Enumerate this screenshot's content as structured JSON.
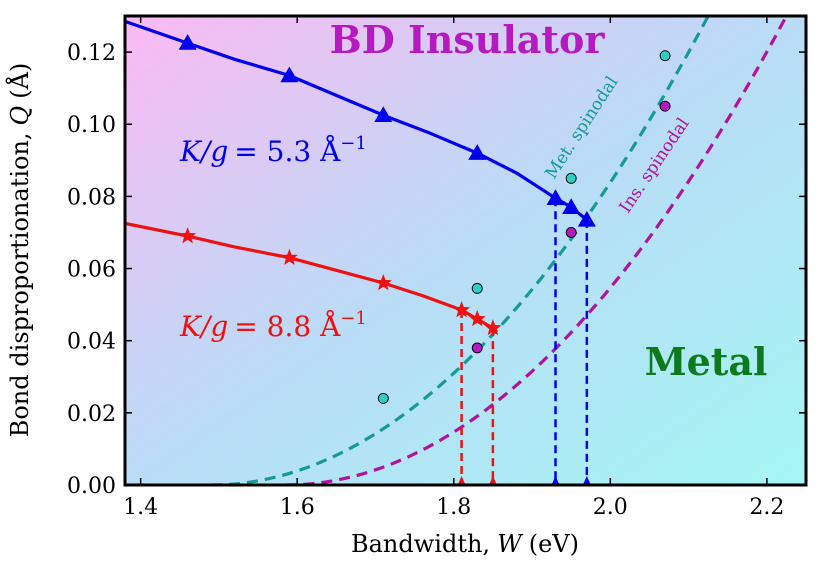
{
  "chart_data": {
    "type": "line",
    "title": "",
    "xlabel_text": "Bandwidth,",
    "xlabel_var": "W",
    "xlabel_unit": "(eV)",
    "ylabel_text": "Bond disproportionation,",
    "ylabel_var": "Q",
    "ylabel_unit": "(Å)",
    "xlim": [
      1.38,
      2.25
    ],
    "ylim": [
      0.0,
      0.13
    ],
    "xticks": [
      1.4,
      1.6,
      1.8,
      2.0,
      2.2
    ],
    "xtick_labels": [
      "1.4",
      "1.6",
      "1.8",
      "2.0",
      "2.2"
    ],
    "yticks": [
      0.0,
      0.02,
      0.04,
      0.06,
      0.08,
      0.1,
      0.12
    ],
    "ytick_labels": [
      "0.00",
      "0.02",
      "0.04",
      "0.06",
      "0.08",
      "0.10",
      "0.12"
    ],
    "background_gradient": [
      "#fbb9f3",
      "#b9dcf6",
      "#a4f6f4"
    ],
    "region_labels": [
      {
        "text": "BD Insulator",
        "color": "#b51ac1"
      },
      {
        "text": "Metal",
        "color": "#0d7a1e"
      }
    ],
    "series": [
      {
        "name": "K/g = 5.3 Å^-1",
        "label_lhs": "K/g",
        "label_eq": "= 5.3 Å",
        "label_exp": "−1",
        "color": "#0000ee",
        "marker": "triangle",
        "x": [
          1.46,
          1.59,
          1.71,
          1.83,
          1.93,
          1.95,
          1.97
        ],
        "y": [
          0.1225,
          0.1135,
          0.1025,
          0.092,
          0.0795,
          0.077,
          0.0735
        ],
        "curve_x": [
          1.38,
          1.46,
          1.52,
          1.59,
          1.65,
          1.71,
          1.77,
          1.83,
          1.88,
          1.93,
          1.95,
          1.97
        ],
        "curve_y": [
          0.1285,
          0.1225,
          0.118,
          0.1135,
          0.108,
          0.1025,
          0.0975,
          0.092,
          0.0865,
          0.0795,
          0.077,
          0.0735
        ],
        "drop_x": [
          1.93,
          1.97
        ]
      },
      {
        "name": "K/g = 8.8 Å^-1",
        "label_lhs": "K/g",
        "label_eq": "= 8.8 Å",
        "label_exp": "−1",
        "color": "#ee1111",
        "marker": "star",
        "x": [
          1.46,
          1.59,
          1.71,
          1.81,
          1.83,
          1.85
        ],
        "y": [
          0.069,
          0.063,
          0.056,
          0.0485,
          0.046,
          0.0435
        ],
        "curve_x": [
          1.38,
          1.46,
          1.52,
          1.59,
          1.65,
          1.71,
          1.76,
          1.81,
          1.83,
          1.85
        ],
        "curve_y": [
          0.0725,
          0.069,
          0.066,
          0.063,
          0.0595,
          0.056,
          0.0525,
          0.0485,
          0.046,
          0.0435
        ],
        "drop_x": [
          1.81,
          1.85
        ]
      }
    ],
    "spinodals": [
      {
        "name": "Met. spinodal",
        "color": "#159a95",
        "marker_fill": "#2ccfc6",
        "points_x": [
          1.71,
          1.83,
          1.95,
          2.07
        ],
        "points_y": [
          0.024,
          0.0545,
          0.085,
          0.119
        ],
        "x0": 1.49,
        "y_at_top": 2.125
      },
      {
        "name": "Ins. spinodal",
        "color": "#b0149e",
        "marker_fill": "#b51ac1",
        "points_x": [
          1.83,
          1.95,
          2.07
        ],
        "points_y": [
          0.038,
          0.07,
          0.105
        ],
        "x0": 1.585,
        "y_at_top": 2.225
      }
    ]
  }
}
